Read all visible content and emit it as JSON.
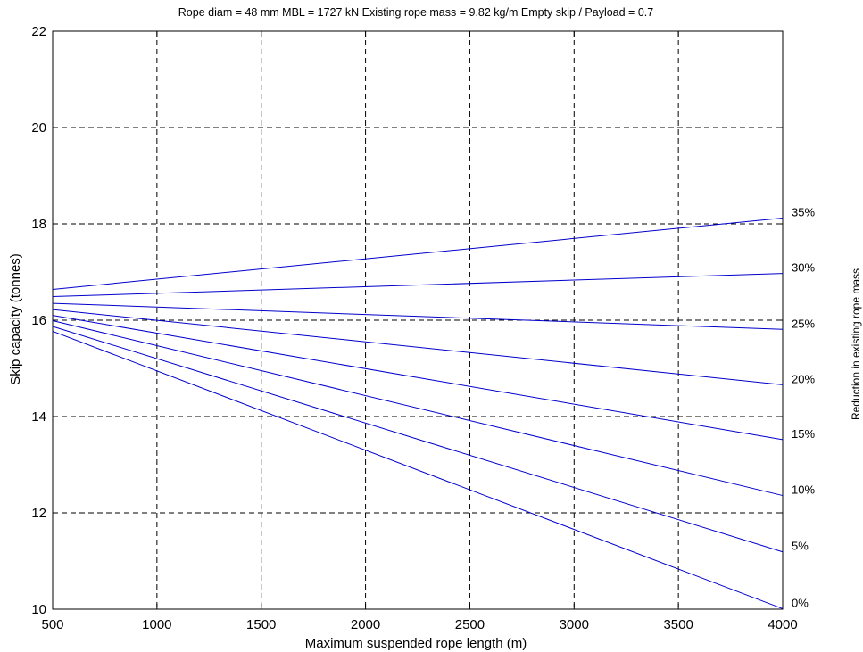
{
  "chart_data": {
    "type": "line",
    "title": "Rope diam = 48 mm     MBL = 1727 kN     Existing rope mass = 9.82 kg/m     Empty skip / Payload = 0.7",
    "xlabel": "Maximum suspended rope length (m)",
    "ylabel": "Skip capacity (tonnes)",
    "right_label": "Reduction in existing rope mass",
    "xlim": [
      500,
      4000
    ],
    "ylim": [
      10,
      22
    ],
    "x_ticks": [
      "500",
      "1000",
      "1500",
      "2000",
      "2500",
      "3000",
      "3500",
      "4000"
    ],
    "y_ticks": [
      "10",
      "12",
      "14",
      "16",
      "18",
      "20",
      "22"
    ],
    "grid": true,
    "line_color": "#0000cc",
    "x": [
      500,
      4000
    ],
    "series": [
      {
        "name": "0%",
        "values": [
          15.77,
          10.01
        ]
      },
      {
        "name": "5%",
        "values": [
          15.87,
          11.19
        ]
      },
      {
        "name": "10%",
        "values": [
          15.99,
          12.36
        ]
      },
      {
        "name": "15%",
        "values": [
          16.1,
          13.52
        ]
      },
      {
        "name": "20%",
        "values": [
          16.22,
          14.66
        ]
      },
      {
        "name": "25%",
        "values": [
          16.35,
          15.81
        ]
      },
      {
        "name": "30%",
        "values": [
          16.49,
          16.97
        ]
      },
      {
        "name": "35%",
        "values": [
          16.64,
          18.12
        ]
      }
    ]
  }
}
